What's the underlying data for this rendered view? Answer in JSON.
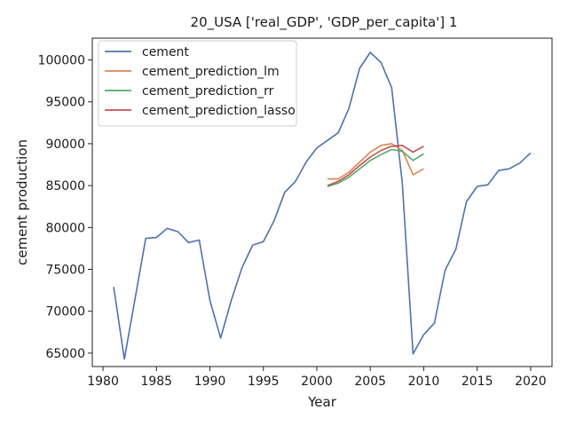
{
  "chart_data": {
    "type": "line",
    "title": "20_USA ['real_GDP', 'GDP_per_capita'] 1",
    "xlabel": "Year",
    "ylabel": "cement production",
    "xlim": [
      1979,
      2022
    ],
    "ylim": [
      63400,
      102600
    ],
    "xticks": [
      1980,
      1985,
      1990,
      1995,
      2000,
      2005,
      2010,
      2015,
      2020
    ],
    "yticks": [
      65000,
      70000,
      75000,
      80000,
      85000,
      90000,
      95000,
      100000
    ],
    "grid": false,
    "legend_position": "top-left",
    "series": [
      {
        "name": "cement",
        "color": "#4c72b0",
        "x": [
          1981,
          1982,
          1983,
          1984,
          1985,
          1986,
          1987,
          1988,
          1989,
          1990,
          1991,
          1992,
          1993,
          1994,
          1995,
          1996,
          1997,
          1998,
          1999,
          2000,
          2001,
          2002,
          2003,
          2004,
          2005,
          2006,
          2007,
          2008,
          2009,
          2010,
          2011,
          2012,
          2013,
          2014,
          2015,
          2016,
          2017,
          2018,
          2019,
          2020
        ],
        "y": [
          72900,
          64300,
          71500,
          78700,
          78800,
          79900,
          79500,
          78200,
          78500,
          71300,
          66800,
          71300,
          75200,
          77900,
          78300,
          80800,
          84200,
          85500,
          87800,
          89500,
          90400,
          91300,
          94200,
          99000,
          100900,
          99700,
          96700,
          85300,
          64900,
          67200,
          68600,
          74900,
          77400,
          83100,
          84900,
          85100,
          86800,
          87000,
          87700,
          88900
        ]
      },
      {
        "name": "cement_prediction_lm",
        "color": "#dd8452",
        "x": [
          2001,
          2002,
          2003,
          2004,
          2005,
          2006,
          2007,
          2008,
          2009,
          2010
        ],
        "y": [
          85800,
          85800,
          86600,
          87800,
          89000,
          89800,
          90000,
          89200,
          86300,
          87000
        ]
      },
      {
        "name": "cement_prediction_rr",
        "color": "#55a868",
        "x": [
          2001,
          2002,
          2003,
          2004,
          2005,
          2006,
          2007,
          2008,
          2009,
          2010
        ],
        "y": [
          84900,
          85300,
          86000,
          87000,
          88000,
          88700,
          89300,
          89100,
          88000,
          88800
        ]
      },
      {
        "name": "cement_prediction_lasso",
        "color": "#c44e52",
        "x": [
          2001,
          2002,
          2003,
          2004,
          2005,
          2006,
          2007,
          2008,
          2009,
          2010
        ],
        "y": [
          85000,
          85500,
          86300,
          87400,
          88400,
          89200,
          89700,
          89800,
          89000,
          89700
        ]
      }
    ]
  }
}
